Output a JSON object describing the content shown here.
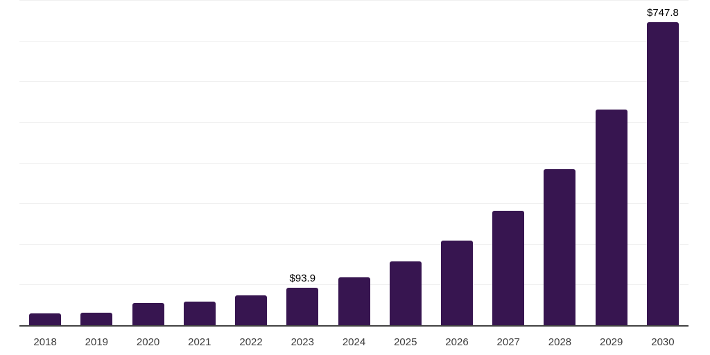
{
  "chart_data": {
    "type": "bar",
    "title": "",
    "xlabel": "",
    "ylabel": "",
    "categories": [
      "2018",
      "2019",
      "2020",
      "2021",
      "2022",
      "2023",
      "2024",
      "2025",
      "2026",
      "2027",
      "2028",
      "2029",
      "2030"
    ],
    "values": [
      30,
      32,
      55.5,
      59,
      75.5,
      93.9,
      120,
      158,
      210,
      283,
      385,
      532,
      747.8
    ],
    "bar_labels": [
      "",
      "",
      "",
      "",
      "",
      "$93.9",
      "",
      "",
      "",
      "",
      "",
      "",
      "$747.8"
    ],
    "ylim": [
      0,
      800
    ],
    "gridline_step": 100,
    "grid": true,
    "legend": false,
    "colors": {
      "bar": "#371550",
      "axis": "#424242",
      "gridline": "#f0f0f0",
      "value_label": "#000000",
      "tick_label": "#3d3d3d",
      "background": "#ffffff"
    }
  }
}
